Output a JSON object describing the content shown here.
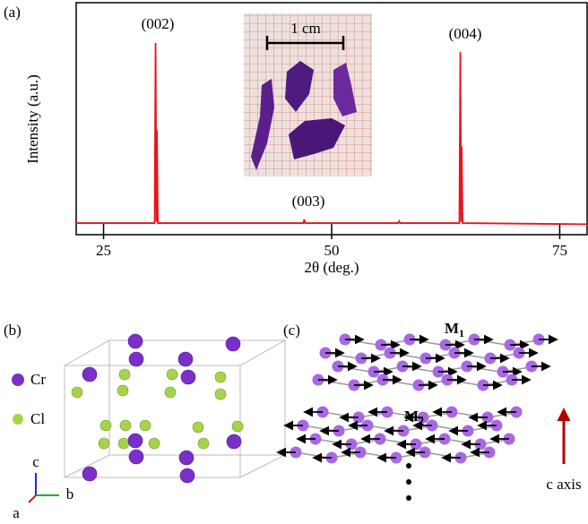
{
  "chart_data": {
    "type": "line",
    "panel_label": "(a)",
    "x_label": "2θ (deg.)",
    "y_label": "Intensity (a.u.)",
    "xlim": [
      22,
      78
    ],
    "xticks": [
      25,
      50,
      75
    ],
    "ylim": [
      0,
      100
    ],
    "x": [
      22,
      30.6,
      30.7,
      30.8,
      30.85,
      30.95,
      46.9,
      47.0,
      47.1,
      57.3,
      57.4,
      57.5,
      64.0,
      64.1,
      64.2,
      64.25,
      64.35,
      78
    ],
    "series": [
      {
        "color": "#e8141b",
        "values": [
          5,
          5,
          82.6,
          5.5,
          45,
          5,
          5,
          6.6,
          5,
          5,
          5.8,
          5,
          5,
          78.8,
          5.5,
          38,
          5,
          4.5
        ]
      }
    ],
    "annotations": [
      "(002)",
      "(003)",
      "(004)"
    ],
    "inset_label": "1 cm"
  },
  "crystal": {
    "panel_label": "(b)",
    "legend": [
      "Cr",
      "Cl"
    ],
    "axes": [
      "c",
      "b",
      "a"
    ]
  },
  "spins": {
    "panel_label": "(c)",
    "layers": [
      {
        "main": "M",
        "sub": "1"
      },
      {
        "main": "M",
        "sub": "2"
      }
    ],
    "axis_label": "c axis"
  }
}
